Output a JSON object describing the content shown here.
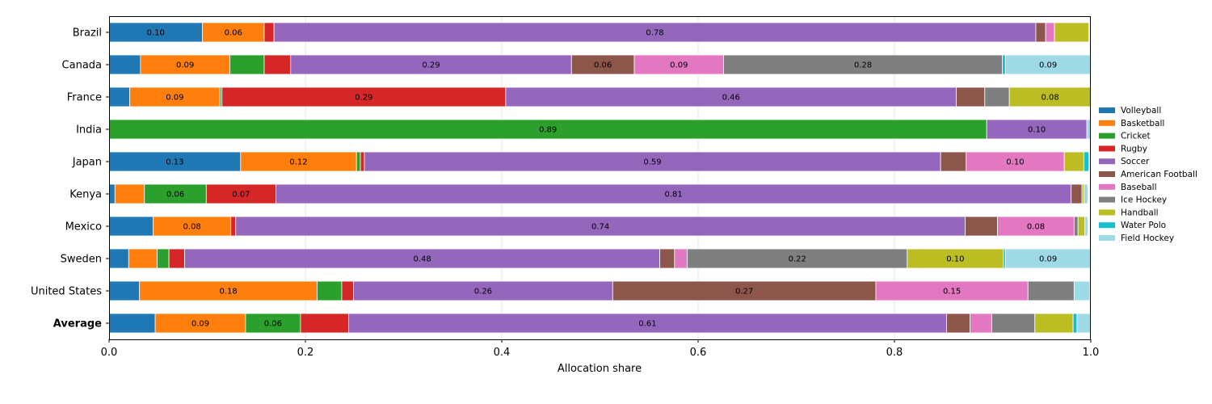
{
  "chart_data": {
    "type": "bar",
    "orientation": "horizontal",
    "stacked": true,
    "title": "",
    "xlabel": "Allocation share",
    "ylabel": "",
    "xlim": [
      0,
      1
    ],
    "xticks": [
      "0.0",
      "0.2",
      "0.4",
      "0.6",
      "0.8",
      "1.0"
    ],
    "grid": "vertical",
    "legend_position": "right",
    "categories": [
      "Brazil",
      "Canada",
      "France",
      "India",
      "Japan",
      "Kenya",
      "Mexico",
      "Sweden",
      "United States",
      "Average"
    ],
    "bold_categories": [
      "Average"
    ],
    "series": [
      {
        "name": "Volleyball",
        "color": "#1f77b4",
        "values": [
          0.095,
          0.032,
          0.021,
          0.0,
          0.134,
          0.006,
          0.045,
          0.02,
          0.031,
          0.047
        ]
      },
      {
        "name": "Basketball",
        "color": "#ff7f0e",
        "values": [
          0.063,
          0.091,
          0.092,
          0.0,
          0.118,
          0.03,
          0.079,
          0.029,
          0.181,
          0.092
        ]
      },
      {
        "name": "Cricket",
        "color": "#2ca02c",
        "values": [
          0.0,
          0.035,
          0.002,
          0.894,
          0.004,
          0.063,
          0.0,
          0.012,
          0.025,
          0.056
        ]
      },
      {
        "name": "Rugby",
        "color": "#d62728",
        "values": [
          0.01,
          0.027,
          0.289,
          0.0,
          0.004,
          0.071,
          0.005,
          0.016,
          0.012,
          0.049
        ]
      },
      {
        "name": "Soccer",
        "color": "#9467bd",
        "values": [
          0.776,
          0.286,
          0.459,
          0.102,
          0.587,
          0.81,
          0.743,
          0.484,
          0.264,
          0.609
        ]
      },
      {
        "name": "American Football",
        "color": "#8c564b",
        "values": [
          0.01,
          0.064,
          0.029,
          0.0,
          0.026,
          0.011,
          0.033,
          0.015,
          0.268,
          0.024
        ]
      },
      {
        "name": "Baseball",
        "color": "#e377c2",
        "values": [
          0.009,
          0.091,
          0.0,
          0.0,
          0.1,
          0.0,
          0.078,
          0.013,
          0.155,
          0.022
        ]
      },
      {
        "name": "Ice Hockey",
        "color": "#7f7f7f",
        "values": [
          0.0,
          0.284,
          0.025,
          0.0,
          0.0,
          0.0,
          0.004,
          0.224,
          0.047,
          0.044
        ]
      },
      {
        "name": "Handball",
        "color": "#bcbd22",
        "values": [
          0.035,
          0.0,
          0.083,
          0.0,
          0.02,
          0.002,
          0.007,
          0.098,
          0.0,
          0.039
        ]
      },
      {
        "name": "Water Polo",
        "color": "#17becf",
        "values": [
          0.0,
          0.003,
          0.0,
          0.0,
          0.005,
          0.0,
          0.0,
          0.002,
          0.0,
          0.004
        ]
      },
      {
        "name": "Field Hockey",
        "color": "#9edae5",
        "values": [
          0.0,
          0.087,
          0.0,
          0.004,
          0.0,
          0.004,
          0.003,
          0.087,
          0.016,
          0.014
        ]
      }
    ],
    "label_threshold": 0.05
  }
}
